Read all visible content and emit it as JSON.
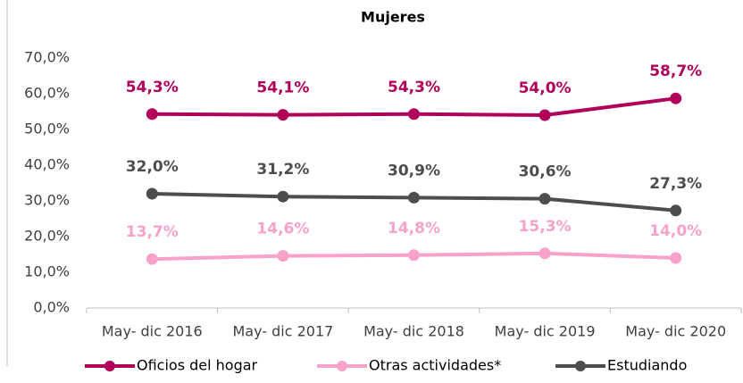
{
  "chart_data": {
    "type": "line",
    "title": "Mujeres",
    "categories": [
      "May- dic 2016",
      "May- dic 2017",
      "May- dic 2018",
      "May- dic 2019",
      "May- dic 2020"
    ],
    "series": [
      {
        "name": "Oficios del hogar",
        "color": "#b0005a",
        "values": [
          54.3,
          54.1,
          54.3,
          54.0,
          58.7
        ],
        "value_labels": [
          "54,3%",
          "54,1%",
          "54,3%",
          "54,0%",
          "58,7%"
        ]
      },
      {
        "name": "Otras actividades*",
        "color": "#f7a1cb",
        "values": [
          13.7,
          14.6,
          14.8,
          15.3,
          14.0
        ],
        "value_labels": [
          "13,7%",
          "14,6%",
          "14,8%",
          "15,3%",
          "14,0%"
        ]
      },
      {
        "name": "Estudiando",
        "color": "#4d4d4d",
        "values": [
          32.0,
          31.2,
          30.9,
          30.6,
          27.3
        ],
        "value_labels": [
          "32,0%",
          "31,2%",
          "30,9%",
          "30,6%",
          "27,3%"
        ]
      }
    ],
    "ylim": [
      0,
      70
    ],
    "yticks": [
      {
        "value": 0,
        "label": "0,0%"
      },
      {
        "value": 10,
        "label": "10,0%"
      },
      {
        "value": 20,
        "label": "20,0%"
      },
      {
        "value": 30,
        "label": "30,0%"
      },
      {
        "value": 40,
        "label": "40,0%"
      },
      {
        "value": 50,
        "label": "50,0%"
      },
      {
        "value": 60,
        "label": "60,0%"
      },
      {
        "value": 70,
        "label": "70,0%"
      }
    ],
    "grid": false,
    "legend": "bottom"
  }
}
